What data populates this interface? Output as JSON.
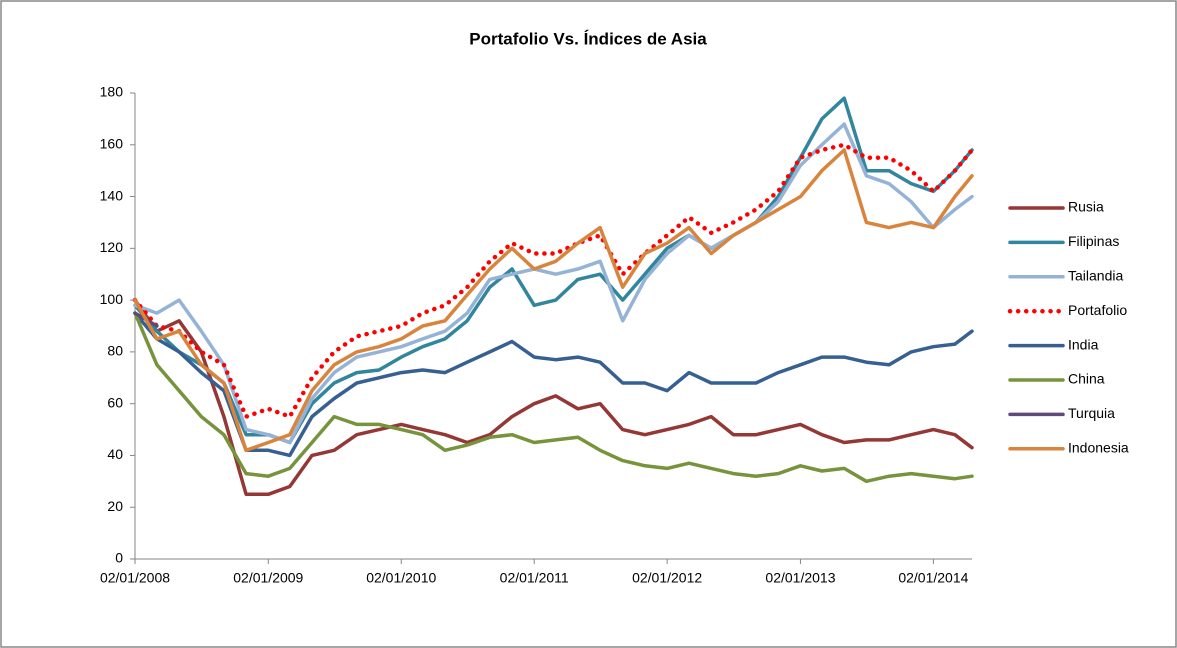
{
  "chart_data": {
    "type": "line",
    "title": "Portafolio Vs. Índices de Asia",
    "x": [
      "2008-01-02",
      "2008-03-02",
      "2008-05-02",
      "2008-07-02",
      "2008-09-02",
      "2008-11-02",
      "2009-01-02",
      "2009-03-02",
      "2009-05-02",
      "2009-07-02",
      "2009-09-02",
      "2009-11-02",
      "2010-01-02",
      "2010-03-02",
      "2010-05-02",
      "2010-07-02",
      "2010-09-02",
      "2010-11-02",
      "2011-01-02",
      "2011-03-02",
      "2011-05-02",
      "2011-07-02",
      "2011-09-02",
      "2011-11-02",
      "2012-01-02",
      "2012-03-02",
      "2012-05-02",
      "2012-07-02",
      "2012-09-02",
      "2012-11-02",
      "2013-01-02",
      "2013-03-02",
      "2013-05-02",
      "2013-07-02",
      "2013-09-02",
      "2013-11-02",
      "2014-01-02",
      "2014-03-02",
      "2014-04-18"
    ],
    "series": [
      {
        "name": "Rusia",
        "color": "#953735",
        "values": [
          100,
          88,
          92,
          80,
          55,
          25,
          25,
          28,
          40,
          42,
          48,
          50,
          52,
          50,
          48,
          45,
          48,
          55,
          60,
          63,
          58,
          60,
          50,
          48,
          50,
          52,
          55,
          48,
          48,
          50,
          52,
          48,
          45,
          46,
          46,
          48,
          50,
          48,
          43
        ]
      },
      {
        "name": "Filipinas",
        "color": "#31859c",
        "values": [
          98,
          88,
          80,
          75,
          68,
          48,
          48,
          45,
          60,
          68,
          72,
          73,
          78,
          82,
          85,
          92,
          105,
          112,
          98,
          100,
          108,
          110,
          100,
          110,
          120,
          125,
          120,
          125,
          130,
          140,
          155,
          170,
          178,
          150,
          150,
          145,
          142,
          150,
          158
        ]
      },
      {
        "name": "Tailandia",
        "color": "#95b3d7",
        "values": [
          98,
          95,
          100,
          88,
          75,
          50,
          48,
          45,
          62,
          72,
          78,
          80,
          82,
          85,
          88,
          95,
          108,
          110,
          112,
          110,
          112,
          115,
          92,
          108,
          118,
          125,
          120,
          125,
          130,
          138,
          152,
          160,
          168,
          148,
          145,
          138,
          128,
          135,
          140
        ]
      },
      {
        "name": "Portafolio",
        "color": "#ff0000",
        "dotted": true,
        "values": [
          100,
          90,
          88,
          80,
          75,
          55,
          58,
          55,
          70,
          80,
          86,
          88,
          90,
          95,
          98,
          105,
          115,
          122,
          118,
          118,
          122,
          125,
          110,
          118,
          125,
          132,
          126,
          130,
          135,
          142,
          155,
          158,
          160,
          155,
          155,
          150,
          142,
          150,
          158
        ]
      },
      {
        "name": "India",
        "color": "#376092",
        "values": [
          95,
          85,
          80,
          72,
          65,
          42,
          42,
          40,
          55,
          62,
          68,
          70,
          72,
          73,
          72,
          76,
          80,
          84,
          78,
          77,
          78,
          76,
          68,
          68,
          65,
          72,
          68,
          68,
          68,
          72,
          75,
          78,
          78,
          76,
          75,
          80,
          82,
          83,
          88
        ]
      },
      {
        "name": "China",
        "color": "#77933c",
        "values": [
          95,
          75,
          65,
          55,
          48,
          33,
          32,
          35,
          45,
          55,
          52,
          52,
          50,
          48,
          42,
          44,
          47,
          48,
          45,
          46,
          47,
          42,
          38,
          36,
          35,
          37,
          35,
          33,
          32,
          33,
          36,
          34,
          35,
          30,
          32,
          33,
          32,
          31,
          32
        ]
      },
      {
        "name": "Turquia",
        "color": "#604a7b",
        "values": [
          95,
          90,
          null,
          null,
          null,
          null,
          null,
          null,
          null,
          null,
          null,
          null,
          null,
          null,
          null,
          null,
          null,
          null,
          null,
          null,
          null,
          null,
          null,
          null,
          null,
          null,
          null,
          null,
          null,
          null,
          null,
          null,
          null,
          null,
          null,
          null,
          null,
          null,
          null
        ]
      },
      {
        "name": "Indonesia",
        "color": "#d9843c",
        "values": [
          100,
          85,
          88,
          75,
          68,
          42,
          45,
          48,
          65,
          75,
          80,
          82,
          85,
          90,
          92,
          102,
          112,
          120,
          112,
          115,
          122,
          128,
          105,
          118,
          122,
          128,
          118,
          125,
          130,
          135,
          140,
          150,
          158,
          130,
          128,
          130,
          128,
          140,
          148
        ]
      }
    ],
    "xlim": [
      "2008-01-02",
      "2014-04-18"
    ],
    "xticks": [
      {
        "value": "2008-01-02",
        "label": "02/01/2008"
      },
      {
        "value": "2009-01-02",
        "label": "02/01/2009"
      },
      {
        "value": "2010-01-02",
        "label": "02/01/2010"
      },
      {
        "value": "2011-01-02",
        "label": "02/01/2011"
      },
      {
        "value": "2012-01-02",
        "label": "02/01/2012"
      },
      {
        "value": "2013-01-02",
        "label": "02/01/2013"
      },
      {
        "value": "2014-01-02",
        "label": "02/01/2014"
      }
    ],
    "ylim": [
      0,
      180
    ],
    "yticks": [
      0,
      20,
      40,
      60,
      80,
      100,
      120,
      140,
      160,
      180
    ],
    "grid": false,
    "legend": "right"
  }
}
